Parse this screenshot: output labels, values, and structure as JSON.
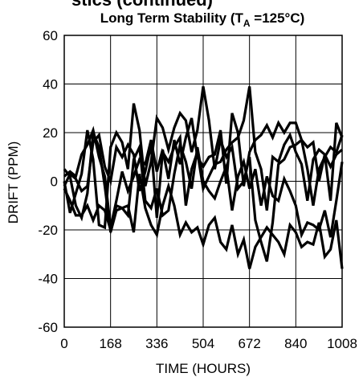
{
  "header_fragment": "stics (continued)",
  "chart_data": {
    "type": "line",
    "title": {
      "prefix": "Long Term Stability (T",
      "subscript": "A",
      "suffix": " =125°C)"
    },
    "xlabel": "TIME (HOURS)",
    "ylabel": "DRIFT (PPM)",
    "xlim": [
      0,
      1008
    ],
    "ylim": [
      -60,
      60
    ],
    "xticks": [
      0,
      168,
      336,
      504,
      672,
      840,
      1008
    ],
    "yticks": [
      -60,
      -40,
      -20,
      0,
      20,
      40,
      60
    ],
    "grid": true,
    "line_color": "#000000",
    "series": [
      {
        "x": [
          0,
          21,
          42,
          63,
          84,
          105,
          126,
          147,
          168,
          189,
          210,
          231,
          252,
          273,
          294,
          315,
          336,
          357,
          378,
          399,
          420,
          441,
          462,
          483,
          504,
          525,
          546,
          567,
          588,
          609,
          630,
          651,
          672,
          693,
          714,
          735,
          756,
          777,
          798,
          819,
          840,
          861,
          882,
          903,
          924,
          945,
          966,
          987,
          1008
        ],
        "y": [
          0,
          -13,
          -5,
          3,
          21,
          9,
          -18,
          -19,
          14,
          20,
          16,
          5,
          32,
          21,
          -2,
          8,
          26,
          22,
          13,
          22,
          28,
          25,
          12,
          21,
          39,
          25,
          5,
          17,
          10,
          14,
          -3,
          0,
          10,
          -16,
          -25,
          -33,
          -17,
          7,
          9,
          14,
          15,
          17,
          14,
          16,
          0,
          11,
          -8,
          24,
          18
        ]
      },
      {
        "x": [
          0,
          21,
          42,
          63,
          84,
          105,
          126,
          147,
          168,
          189,
          210,
          231,
          252,
          273,
          294,
          315,
          336,
          357,
          378,
          399,
          420,
          441,
          462,
          483,
          504,
          525,
          546,
          567,
          588,
          609,
          630,
          651,
          672,
          693,
          714,
          735,
          756,
          777,
          798,
          819,
          840,
          861,
          882,
          903,
          924,
          945,
          966,
          987,
          1008
        ],
        "y": [
          -2,
          3,
          1,
          -4,
          -2,
          16,
          19,
          6,
          0,
          14,
          10,
          15,
          11,
          -4,
          4,
          15,
          -15,
          12,
          8,
          14,
          18,
          -10,
          5,
          12,
          -3,
          2,
          7,
          8,
          13,
          16,
          18,
          25,
          39,
          12,
          5,
          -12,
          10,
          8,
          15,
          19,
          12,
          7,
          -8,
          9,
          13,
          11,
          6,
          11,
          13
        ]
      },
      {
        "x": [
          0,
          21,
          42,
          63,
          84,
          105,
          126,
          147,
          168,
          189,
          210,
          231,
          252,
          273,
          294,
          315,
          336,
          357,
          378,
          399,
          420,
          441,
          462,
          483,
          504,
          525,
          546,
          567,
          588,
          609,
          630,
          651,
          672,
          693,
          714,
          735,
          756,
          777,
          798,
          819,
          840,
          861,
          882,
          903,
          924,
          945,
          966,
          987,
          1008
        ],
        "y": [
          2,
          4,
          2,
          11,
          15,
          21,
          10,
          2,
          -19,
          -8,
          4,
          -4,
          2,
          9,
          7,
          17,
          4,
          13,
          1,
          17,
          7,
          18,
          26,
          10,
          6,
          10,
          11,
          21,
          -1,
          28,
          20,
          -2,
          12,
          17,
          19,
          23,
          18,
          24,
          20,
          24,
          24,
          17,
          5,
          -10,
          5,
          10,
          14,
          12,
          19
        ]
      },
      {
        "x": [
          0,
          21,
          42,
          63,
          84,
          105,
          126,
          147,
          168,
          189,
          210,
          231,
          252,
          273,
          294,
          315,
          336,
          357,
          378,
          399,
          420,
          441,
          462,
          483,
          504,
          525,
          546,
          567,
          588,
          609,
          630,
          651,
          672,
          693,
          714,
          735,
          756,
          777,
          798,
          819,
          840,
          861,
          882,
          903,
          924,
          945,
          966,
          987,
          1008
        ],
        "y": [
          -3,
          -8,
          -14,
          -14,
          -10,
          -16,
          -10,
          -12,
          -20,
          -10,
          -11,
          -14,
          9,
          14,
          -8,
          -11,
          -3,
          -14,
          -12,
          3,
          15,
          8,
          -3,
          14,
          0,
          -4,
          -7,
          0,
          6,
          -12,
          2,
          8,
          -3,
          5,
          -10,
          2,
          -6,
          -8,
          1,
          -4,
          -10,
          -22,
          -17,
          -18,
          -20,
          -12,
          -23,
          -8,
          8
        ]
      },
      {
        "x": [
          0,
          21,
          42,
          63,
          84,
          105,
          126,
          147,
          168,
          189,
          210,
          231,
          252,
          273,
          294,
          315,
          336,
          357,
          378,
          399,
          420,
          441,
          462,
          483,
          504,
          525,
          546,
          567,
          588,
          609,
          630,
          651,
          672,
          693,
          714,
          735,
          756,
          777,
          798,
          819,
          840,
          861,
          882,
          903,
          924,
          945,
          966,
          987,
          1008
        ],
        "y": [
          5,
          2,
          -10,
          -15,
          -5,
          20,
          14,
          -2,
          -21,
          -12,
          -11,
          -10,
          -21,
          3,
          -11,
          -18,
          -22,
          -10,
          -2,
          -10,
          -22,
          -17,
          -21,
          -19,
          -26,
          -18,
          -15,
          -25,
          -28,
          -18,
          -30,
          -24,
          -36,
          -27,
          -23,
          -19,
          -22,
          -25,
          -30,
          -18,
          -21,
          -27,
          -25,
          -26,
          -17,
          -31,
          -28,
          -16,
          -36
        ]
      }
    ]
  }
}
